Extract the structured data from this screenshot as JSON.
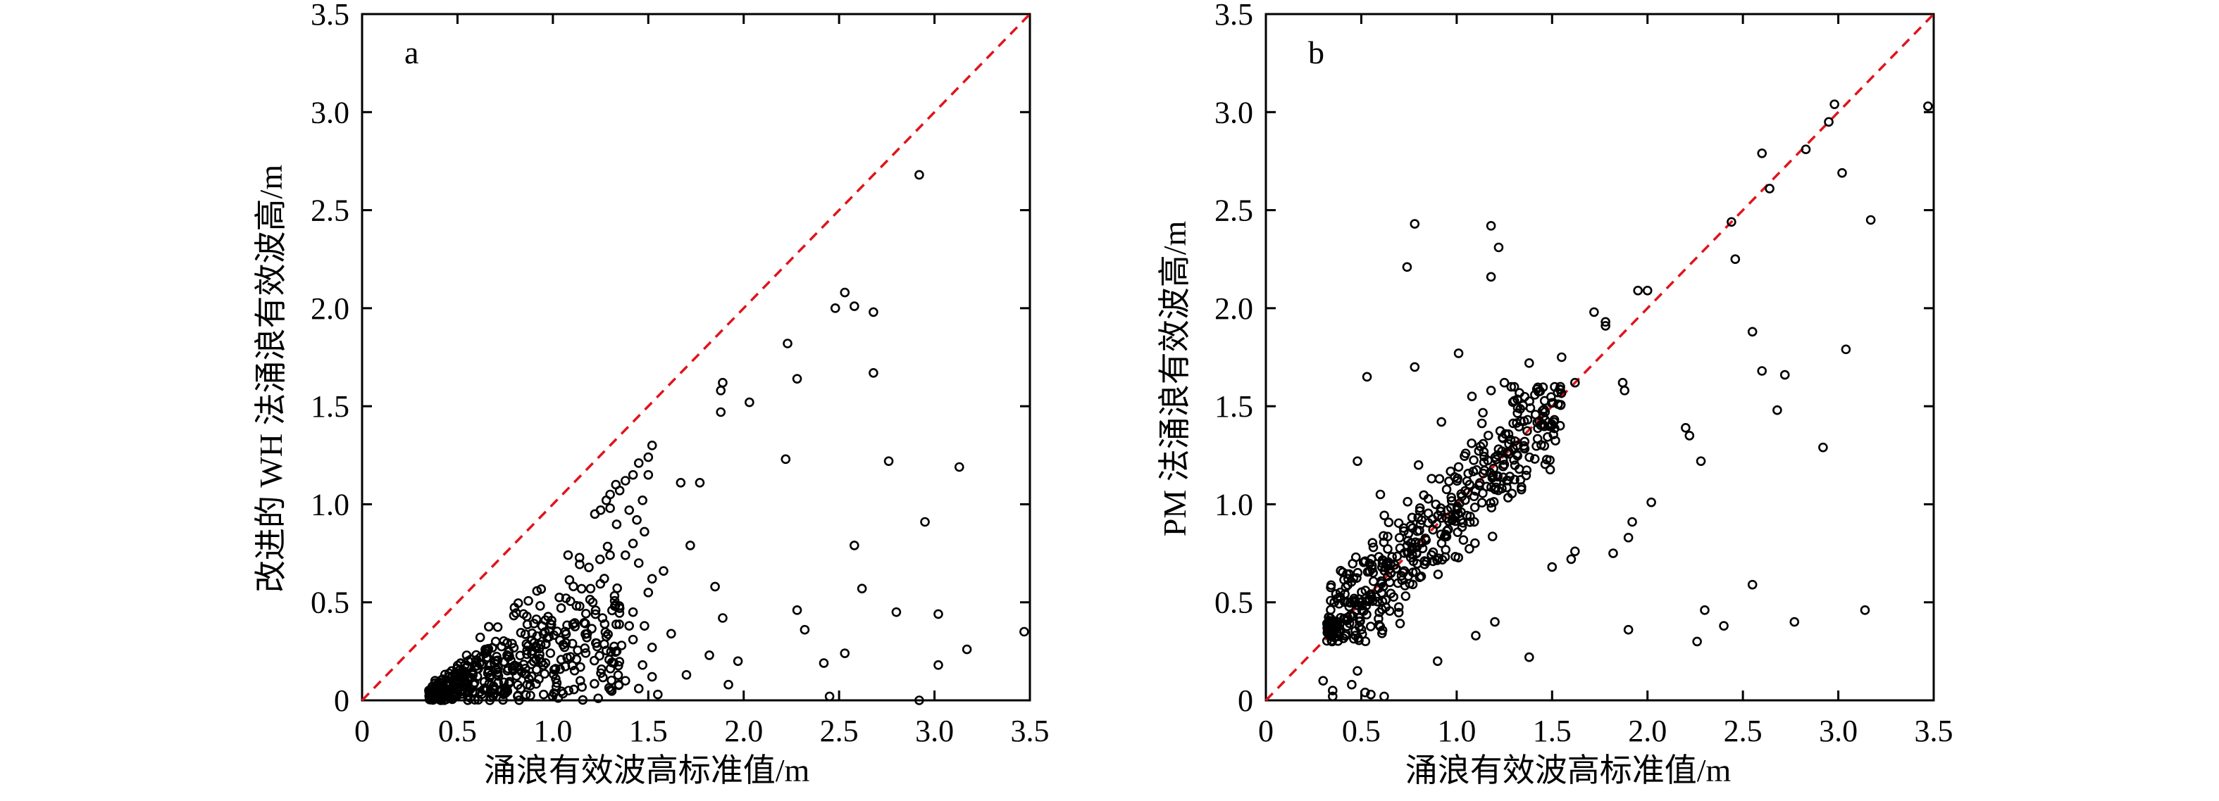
{
  "chart_data": [
    {
      "type": "scatter",
      "panel_label": "a",
      "xlabel": "涌浪有效波高标准值/m",
      "ylabel": "改进的 WH 法涌浪有效波高/m",
      "xlim": [
        0,
        3.5
      ],
      "ylim": [
        0,
        3.5
      ],
      "xticks": [
        "0",
        "0.5",
        "1.0",
        "1.5",
        "2.0",
        "2.5",
        "3.0",
        "3.5"
      ],
      "yticks": [
        "0",
        "0.5",
        "1.0",
        "1.5",
        "2.0",
        "2.5",
        "3.0",
        "3.5"
      ],
      "reference_line": {
        "style": "dashed",
        "color": "#e0141b",
        "from": [
          0,
          0
        ],
        "to": [
          3.5,
          3.5
        ]
      },
      "grid": false,
      "marker": "open-circle",
      "points": [
        [
          2.92,
          2.68
        ],
        [
          2.53,
          2.08
        ],
        [
          2.48,
          2.0
        ],
        [
          2.58,
          2.01
        ],
        [
          2.68,
          1.98
        ],
        [
          2.23,
          1.82
        ],
        [
          2.68,
          1.67
        ],
        [
          2.28,
          1.64
        ],
        [
          1.89,
          1.62
        ],
        [
          1.88,
          1.58
        ],
        [
          2.03,
          1.52
        ],
        [
          1.88,
          1.47
        ],
        [
          1.52,
          1.3
        ],
        [
          2.22,
          1.23
        ],
        [
          2.76,
          1.22
        ],
        [
          3.13,
          1.19
        ],
        [
          1.77,
          1.11
        ],
        [
          1.67,
          1.11
        ],
        [
          2.95,
          0.91
        ],
        [
          1.72,
          0.79
        ],
        [
          2.58,
          0.79
        ],
        [
          1.58,
          0.66
        ],
        [
          2.62,
          0.57
        ],
        [
          1.85,
          0.58
        ],
        [
          1.89,
          0.42
        ],
        [
          2.28,
          0.46
        ],
        [
          2.8,
          0.45
        ],
        [
          3.02,
          0.44
        ],
        [
          2.32,
          0.36
        ],
        [
          3.47,
          0.35
        ],
        [
          1.62,
          0.34
        ],
        [
          3.17,
          0.26
        ],
        [
          1.82,
          0.23
        ],
        [
          2.53,
          0.24
        ],
        [
          1.97,
          0.2
        ],
        [
          2.42,
          0.19
        ],
        [
          3.02,
          0.18
        ],
        [
          1.7,
          0.13
        ],
        [
          1.92,
          0.08
        ],
        [
          2.45,
          0.02
        ],
        [
          1.55,
          0.03
        ],
        [
          2.92,
          0.0
        ],
        [
          1.5,
          1.24
        ],
        [
          1.45,
          1.21
        ],
        [
          1.42,
          1.15
        ],
        [
          1.38,
          1.12
        ],
        [
          1.5,
          1.15
        ],
        [
          1.47,
          1.02
        ],
        [
          1.33,
          1.1
        ],
        [
          1.35,
          1.07
        ],
        [
          1.3,
          1.05
        ],
        [
          1.28,
          1.02
        ],
        [
          1.3,
          0.98
        ],
        [
          1.25,
          0.97
        ],
        [
          1.22,
          0.95
        ],
        [
          1.4,
          0.97
        ],
        [
          1.44,
          0.92
        ],
        [
          1.48,
          0.86
        ],
        [
          1.42,
          0.8
        ],
        [
          1.38,
          0.74
        ],
        [
          1.45,
          0.7
        ],
        [
          1.52,
          0.62
        ],
        [
          1.5,
          0.55
        ],
        [
          1.42,
          0.45
        ],
        [
          1.48,
          0.38
        ],
        [
          1.42,
          0.31
        ],
        [
          1.52,
          0.27
        ],
        [
          1.47,
          0.18
        ],
        [
          1.52,
          0.12
        ],
        [
          1.45,
          0.06
        ],
        [
          1.38,
          0.1
        ],
        [
          1.32,
          0.19
        ],
        [
          1.36,
          0.28
        ],
        [
          1.4,
          0.38
        ],
        [
          1.35,
          0.47
        ]
      ],
      "cluster": {
        "x_range": [
          0.35,
          1.35
        ],
        "y_range": [
          0.0,
          0.92
        ],
        "count": 430,
        "shape": "below-diagonal"
      }
    },
    {
      "type": "scatter",
      "panel_label": "b",
      "xlabel": "涌浪有效波高标准值/m",
      "ylabel": "PM 法涌浪有效波高/m",
      "xlim": [
        0,
        3.5
      ],
      "ylim": [
        0,
        3.5
      ],
      "xticks": [
        "0",
        "0.5",
        "1.0",
        "1.5",
        "2.0",
        "2.5",
        "3.0",
        "3.5"
      ],
      "yticks": [
        "0",
        "0.5",
        "1.0",
        "1.5",
        "2.0",
        "2.5",
        "3.0",
        "3.5"
      ],
      "reference_line": {
        "style": "dashed",
        "color": "#e0141b",
        "from": [
          0,
          0
        ],
        "to": [
          3.5,
          3.5
        ]
      },
      "grid": false,
      "marker": "open-circle",
      "points": [
        [
          2.98,
          3.04
        ],
        [
          3.47,
          3.03
        ],
        [
          2.95,
          2.95
        ],
        [
          2.83,
          2.81
        ],
        [
          2.6,
          2.79
        ],
        [
          3.02,
          2.69
        ],
        [
          2.64,
          2.61
        ],
        [
          3.17,
          2.45
        ],
        [
          2.44,
          2.44
        ],
        [
          0.78,
          2.43
        ],
        [
          1.18,
          2.42
        ],
        [
          1.22,
          2.31
        ],
        [
          0.74,
          2.21
        ],
        [
          2.46,
          2.25
        ],
        [
          1.18,
          2.16
        ],
        [
          1.95,
          2.09
        ],
        [
          2.0,
          2.09
        ],
        [
          1.72,
          1.98
        ],
        [
          1.78,
          1.93
        ],
        [
          1.78,
          1.91
        ],
        [
          2.55,
          1.88
        ],
        [
          1.01,
          1.77
        ],
        [
          3.04,
          1.79
        ],
        [
          1.87,
          1.62
        ],
        [
          1.88,
          1.58
        ],
        [
          0.53,
          1.65
        ],
        [
          0.78,
          1.7
        ],
        [
          2.6,
          1.68
        ],
        [
          2.72,
          1.66
        ],
        [
          2.68,
          1.48
        ],
        [
          2.92,
          1.29
        ],
        [
          2.2,
          1.39
        ],
        [
          2.22,
          1.35
        ],
        [
          2.28,
          1.22
        ],
        [
          2.02,
          1.01
        ],
        [
          1.92,
          0.91
        ],
        [
          1.9,
          0.83
        ],
        [
          1.82,
          0.75
        ],
        [
          1.62,
          0.76
        ],
        [
          2.55,
          0.59
        ],
        [
          2.3,
          0.46
        ],
        [
          3.14,
          0.46
        ],
        [
          2.4,
          0.38
        ],
        [
          2.77,
          0.4
        ],
        [
          1.9,
          0.36
        ],
        [
          2.26,
          0.3
        ],
        [
          1.38,
          0.22
        ],
        [
          0.3,
          0.1
        ],
        [
          0.35,
          0.05
        ],
        [
          0.45,
          0.08
        ],
        [
          0.52,
          0.04
        ],
        [
          0.55,
          0.03
        ],
        [
          0.62,
          0.02
        ],
        [
          0.48,
          0.15
        ],
        [
          0.35,
          0.02
        ],
        [
          0.9,
          0.2
        ],
        [
          1.1,
          0.33
        ],
        [
          1.2,
          0.4
        ],
        [
          1.5,
          0.68
        ],
        [
          1.6,
          0.72
        ],
        [
          0.48,
          1.22
        ],
        [
          0.6,
          1.05
        ],
        [
          0.8,
          1.2
        ],
        [
          0.92,
          1.42
        ],
        [
          1.08,
          1.55
        ],
        [
          1.18,
          1.58
        ],
        [
          1.25,
          1.62
        ],
        [
          1.38,
          1.72
        ],
        [
          1.55,
          1.75
        ],
        [
          1.62,
          1.62
        ]
      ],
      "cluster": {
        "x_range": [
          0.32,
          1.55
        ],
        "y_range": [
          0.3,
          1.6
        ],
        "count": 470,
        "shape": "along-diagonal"
      }
    }
  ]
}
